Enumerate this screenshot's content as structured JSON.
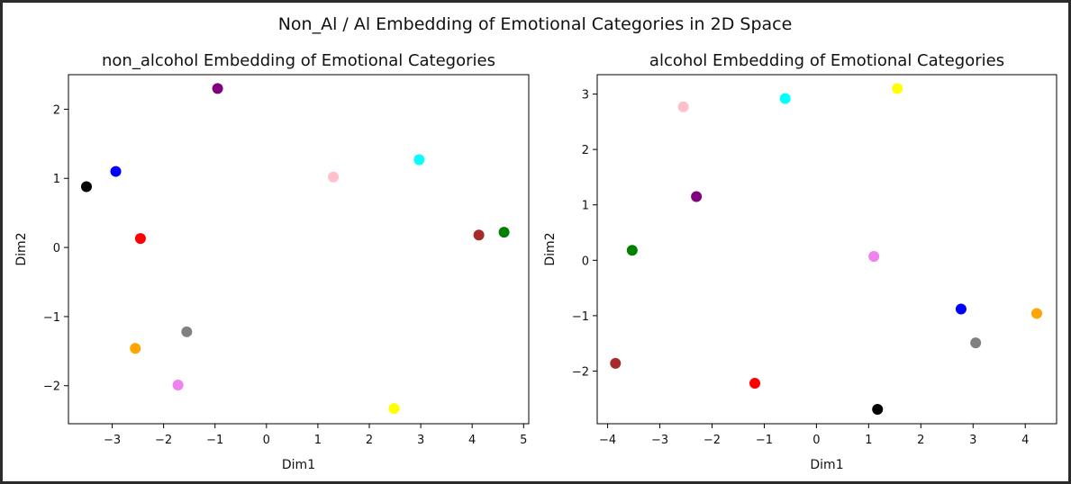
{
  "figure": {
    "suptitle": "Non_Al / Al Embedding of Emotional Categories in 2D Space"
  },
  "chart_data": [
    {
      "type": "scatter",
      "title": "non_alcohol Embedding of Emotional Categories",
      "xlabel": "Dim1",
      "ylabel": "Dim2",
      "xlim": [
        -3.85,
        5.1
      ],
      "ylim": [
        -2.55,
        2.5
      ],
      "xticks": [
        -3,
        -2,
        -1,
        0,
        1,
        2,
        3,
        4,
        5
      ],
      "yticks": [
        -2,
        -1,
        0,
        1,
        2
      ],
      "grid": false,
      "points": [
        {
          "x": -0.95,
          "y": 2.3,
          "color": "#800080"
        },
        {
          "x": -2.93,
          "y": 1.1,
          "color": "#0000ff"
        },
        {
          "x": -3.5,
          "y": 0.88,
          "color": "#000000"
        },
        {
          "x": -2.45,
          "y": 0.13,
          "color": "#ff0000"
        },
        {
          "x": 1.3,
          "y": 1.02,
          "color": "#ffc0cb"
        },
        {
          "x": 2.97,
          "y": 1.27,
          "color": "#00ffff"
        },
        {
          "x": 4.13,
          "y": 0.18,
          "color": "#a52a2a"
        },
        {
          "x": 4.62,
          "y": 0.22,
          "color": "#008000"
        },
        {
          "x": -1.55,
          "y": -1.22,
          "color": "#808080"
        },
        {
          "x": -2.55,
          "y": -1.46,
          "color": "#ffa500"
        },
        {
          "x": -1.72,
          "y": -1.99,
          "color": "#ee82ee"
        },
        {
          "x": 2.48,
          "y": -2.33,
          "color": "#ffff00"
        }
      ]
    },
    {
      "type": "scatter",
      "title": "alcohol Embedding of Emotional Categories",
      "xlabel": "Dim1",
      "ylabel": "Dim2",
      "xlim": [
        -4.2,
        4.6
      ],
      "ylim": [
        -2.95,
        3.35
      ],
      "xticks": [
        -4,
        -3,
        -2,
        -1,
        0,
        1,
        2,
        3,
        4
      ],
      "yticks": [
        -2,
        -1,
        0,
        1,
        2,
        3
      ],
      "grid": false,
      "points": [
        {
          "x": -2.55,
          "y": 2.77,
          "color": "#ffc0cb"
        },
        {
          "x": -0.6,
          "y": 2.92,
          "color": "#00ffff"
        },
        {
          "x": 1.55,
          "y": 3.1,
          "color": "#ffff00"
        },
        {
          "x": -2.3,
          "y": 1.15,
          "color": "#800080"
        },
        {
          "x": -3.53,
          "y": 0.18,
          "color": "#008000"
        },
        {
          "x": 1.1,
          "y": 0.07,
          "color": "#ee82ee"
        },
        {
          "x": 2.77,
          "y": -0.88,
          "color": "#0000ff"
        },
        {
          "x": 4.22,
          "y": -0.96,
          "color": "#ffa500"
        },
        {
          "x": 3.05,
          "y": -1.49,
          "color": "#808080"
        },
        {
          "x": -3.85,
          "y": -1.86,
          "color": "#a52a2a"
        },
        {
          "x": -1.18,
          "y": -2.22,
          "color": "#ff0000"
        },
        {
          "x": 1.17,
          "y": -2.69,
          "color": "#000000"
        }
      ]
    }
  ]
}
